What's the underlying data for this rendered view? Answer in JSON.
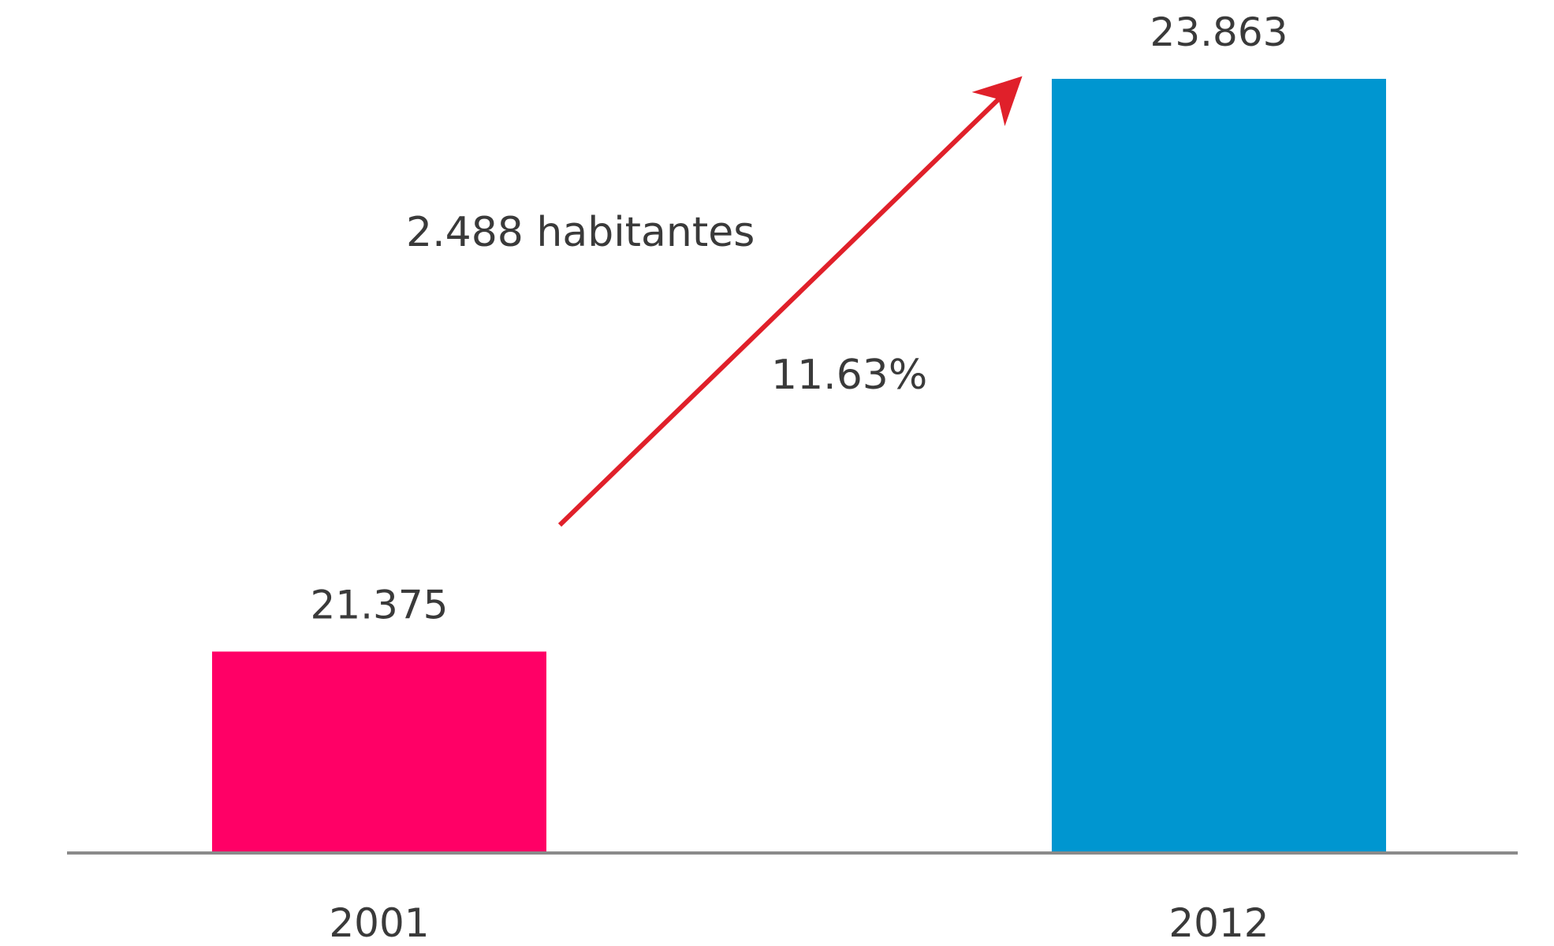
{
  "chart_data": {
    "type": "bar",
    "categories": [
      "2001",
      "2012"
    ],
    "values": [
      21375,
      23863
    ],
    "value_labels": [
      "21.375",
      "23.863"
    ],
    "bar_colors": [
      "#ff0066",
      "#0096d0"
    ],
    "title": "",
    "xlabel": "",
    "ylabel": "",
    "ylim": [
      20500,
      24000
    ],
    "grid": false,
    "legend": "none",
    "annotations": [
      {
        "text": "2.488 habitantes"
      },
      {
        "text": "11.63%"
      }
    ],
    "arrow": {
      "from_category": "2001",
      "to_category": "2012",
      "color": "#e0202a"
    }
  }
}
